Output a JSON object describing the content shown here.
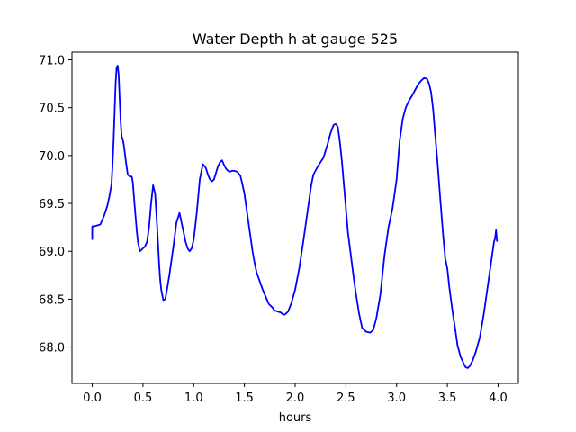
{
  "chart_data": {
    "type": "line",
    "title": "Water Depth h at gauge 525",
    "xlabel": "hours",
    "ylabel": "",
    "xlim": [
      -0.2,
      4.2
    ],
    "ylim": [
      67.62,
      71.08
    ],
    "grid": false,
    "xticks": [
      0.0,
      0.5,
      1.0,
      1.5,
      2.0,
      2.5,
      3.0,
      3.5,
      4.0
    ],
    "xtick_labels": [
      "0.0",
      "0.5",
      "1.0",
      "1.5",
      "2.0",
      "2.5",
      "3.0",
      "3.5",
      "4.0"
    ],
    "yticks": [
      68.0,
      68.5,
      69.0,
      69.5,
      70.0,
      70.5,
      71.0
    ],
    "ytick_labels": [
      "68.0",
      "68.5",
      "69.0",
      "69.5",
      "70.0",
      "70.5",
      "71.0"
    ],
    "series": [
      {
        "color": "#0000ff",
        "x": [
          0.0,
          0.0,
          0.02,
          0.05,
          0.08,
          0.1,
          0.12,
          0.15,
          0.17,
          0.19,
          0.2,
          0.21,
          0.22,
          0.23,
          0.24,
          0.25,
          0.26,
          0.27,
          0.28,
          0.29,
          0.3,
          0.31,
          0.33,
          0.35,
          0.37,
          0.39,
          0.4,
          0.42,
          0.44,
          0.45,
          0.47,
          0.49,
          0.5,
          0.52,
          0.54,
          0.56,
          0.58,
          0.6,
          0.62,
          0.64,
          0.66,
          0.67,
          0.68,
          0.7,
          0.72,
          0.73,
          0.74,
          0.76,
          0.78,
          0.8,
          0.83,
          0.86,
          0.9,
          0.92,
          0.94,
          0.96,
          0.98,
          1.0,
          1.03,
          1.06,
          1.09,
          1.12,
          1.14,
          1.16,
          1.18,
          1.2,
          1.22,
          1.24,
          1.26,
          1.28,
          1.3,
          1.32,
          1.35,
          1.38,
          1.4,
          1.43,
          1.46,
          1.48,
          1.5,
          1.52,
          1.54,
          1.56,
          1.58,
          1.6,
          1.62,
          1.64,
          1.66,
          1.68,
          1.7,
          1.72,
          1.74,
          1.77,
          1.8,
          1.83,
          1.86,
          1.88,
          1.9,
          1.93,
          1.96,
          2.0,
          2.04,
          2.08,
          2.12,
          2.16,
          2.18,
          2.2,
          2.22,
          2.25,
          2.28,
          2.3,
          2.32,
          2.34,
          2.36,
          2.38,
          2.4,
          2.42,
          2.44,
          2.46,
          2.48,
          2.5,
          2.52,
          2.55,
          2.58,
          2.6,
          2.63,
          2.66,
          2.7,
          2.74,
          2.77,
          2.8,
          2.84,
          2.88,
          2.92,
          2.96,
          3.0,
          3.03,
          3.06,
          3.09,
          3.12,
          3.15,
          3.18,
          3.21,
          3.24,
          3.27,
          3.3,
          3.32,
          3.34,
          3.36,
          3.38,
          3.4,
          3.43,
          3.46,
          3.48,
          3.5,
          3.52,
          3.55,
          3.58,
          3.6,
          3.63,
          3.66,
          3.68,
          3.7,
          3.72,
          3.75,
          3.78,
          3.82,
          3.86,
          3.9,
          3.94,
          3.96,
          3.97,
          3.98,
          3.99
        ],
        "y": [
          69.12,
          69.26,
          69.26,
          69.27,
          69.28,
          69.33,
          69.38,
          69.48,
          69.58,
          69.7,
          69.9,
          70.15,
          70.45,
          70.75,
          70.92,
          70.94,
          70.85,
          70.6,
          70.35,
          70.2,
          70.17,
          70.12,
          69.95,
          69.8,
          69.78,
          69.78,
          69.72,
          69.45,
          69.2,
          69.1,
          69.0,
          69.02,
          69.03,
          69.05,
          69.1,
          69.25,
          69.5,
          69.69,
          69.6,
          69.25,
          68.85,
          68.7,
          68.6,
          68.49,
          68.5,
          68.56,
          68.62,
          68.75,
          68.9,
          69.05,
          69.3,
          69.4,
          69.2,
          69.1,
          69.03,
          69.0,
          69.03,
          69.12,
          69.4,
          69.75,
          69.91,
          69.87,
          69.8,
          69.75,
          69.73,
          69.75,
          69.82,
          69.89,
          69.93,
          69.95,
          69.9,
          69.86,
          69.83,
          69.84,
          69.84,
          69.83,
          69.79,
          69.7,
          69.6,
          69.45,
          69.3,
          69.15,
          69.0,
          68.88,
          68.78,
          68.72,
          68.66,
          68.6,
          68.55,
          68.5,
          68.45,
          68.42,
          68.38,
          68.37,
          68.36,
          68.34,
          68.34,
          68.37,
          68.45,
          68.6,
          68.82,
          69.1,
          69.4,
          69.7,
          69.8,
          69.84,
          69.88,
          69.93,
          69.98,
          70.05,
          70.12,
          70.2,
          70.27,
          70.32,
          70.33,
          70.3,
          70.15,
          69.95,
          69.7,
          69.45,
          69.2,
          68.95,
          68.7,
          68.55,
          68.35,
          68.2,
          68.16,
          68.15,
          68.18,
          68.3,
          68.55,
          68.95,
          69.25,
          69.45,
          69.75,
          70.15,
          70.38,
          70.5,
          70.57,
          70.62,
          70.68,
          70.74,
          70.78,
          70.81,
          70.8,
          70.75,
          70.66,
          70.48,
          70.22,
          69.97,
          69.55,
          69.15,
          68.92,
          68.82,
          68.62,
          68.38,
          68.17,
          68.02,
          67.9,
          67.83,
          67.79,
          67.78,
          67.8,
          67.86,
          67.95,
          68.1,
          68.35,
          68.65,
          68.95,
          69.1,
          69.13,
          69.22,
          69.1
        ]
      }
    ]
  }
}
